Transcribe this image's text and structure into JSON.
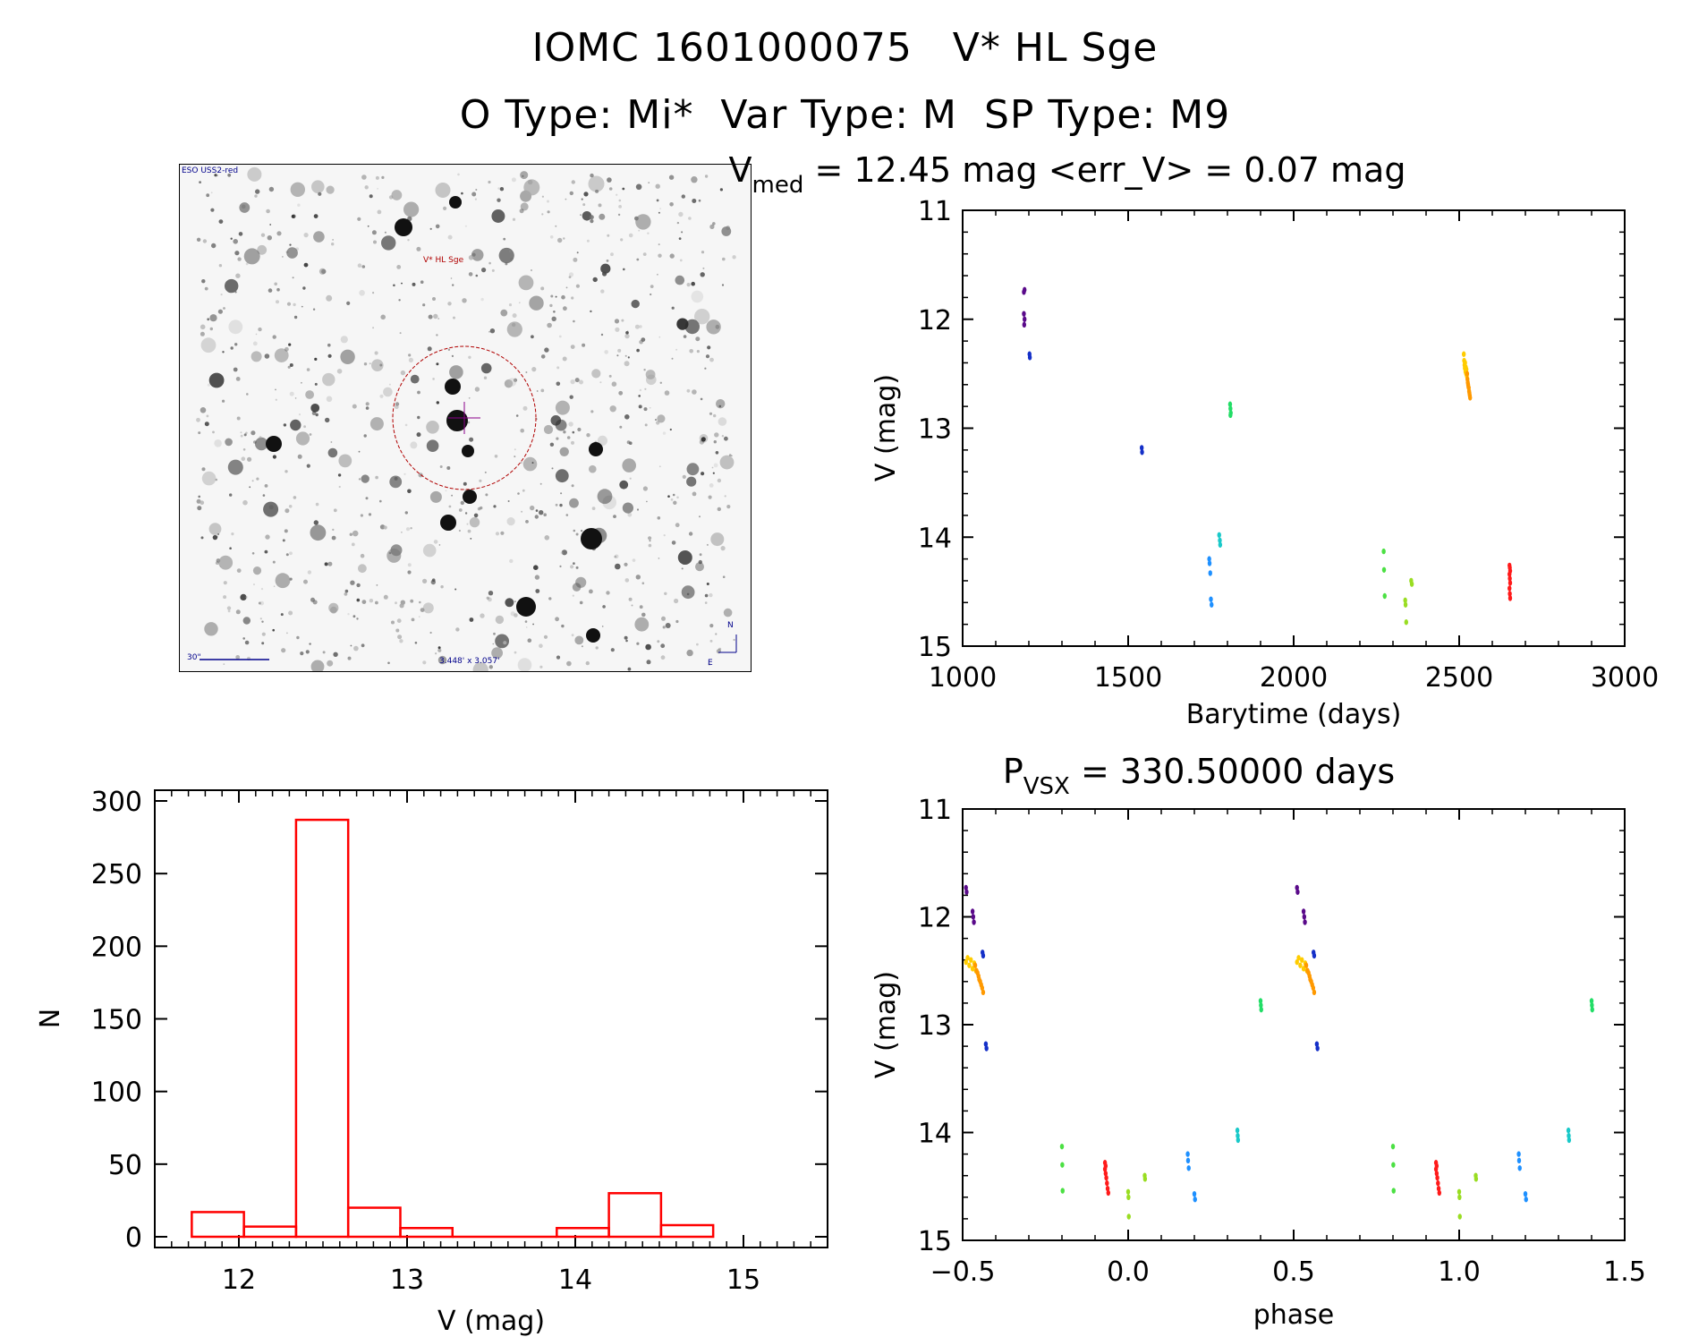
{
  "header": {
    "line1": "IOMC 1601000075   V* HL Sge",
    "line2": "O Type: Mi*  Var Type: M  SP Type: M9"
  },
  "image_stamp": {
    "survey_label": "ESO USS2-red",
    "target_label": "V* HL Sge",
    "scale_label": "30\"",
    "fov_label": "3.448' x 3.057'",
    "compass_n": "N",
    "compass_e": "E"
  },
  "chart_data": [
    {
      "id": "lightcurve",
      "type": "scatter",
      "title_prefix": "V",
      "title_sub": "med",
      "title_rest": " = 12.45 mag <err_V> = 0.07 mag",
      "xlabel": "Barytime (days)",
      "ylabel": "V (mag)",
      "xlim": [
        1000,
        3000
      ],
      "ylim": [
        15,
        11
      ],
      "xticks": [
        "1000",
        "1500",
        "2000",
        "2500",
        "3000"
      ],
      "yticks": [
        "11",
        "12",
        "13",
        "14",
        "15"
      ],
      "series": [
        {
          "name": "g1",
          "color": "#5a0a8a",
          "points": [
            [
              1185,
              11.75
            ],
            [
              1187,
              11.73
            ],
            [
              1185,
              11.95
            ],
            [
              1187,
              12.0
            ],
            [
              1186,
              12.05
            ]
          ]
        },
        {
          "name": "g2",
          "color": "#1530c8",
          "points": [
            [
              1202,
              12.32
            ],
            [
              1203,
              12.35
            ],
            [
              1541,
              13.18
            ],
            [
              1542,
              13.22
            ]
          ]
        },
        {
          "name": "g3",
          "color": "#1e90ff",
          "points": [
            [
              1745,
              14.2
            ],
            [
              1746,
              14.24
            ],
            [
              1748,
              14.33
            ],
            [
              1750,
              14.57
            ],
            [
              1752,
              14.62
            ]
          ]
        },
        {
          "name": "g4",
          "color": "#19c9c9",
          "points": [
            [
              1775,
              13.98
            ],
            [
              1777,
              14.03
            ],
            [
              1778,
              14.07
            ]
          ]
        },
        {
          "name": "g5",
          "color": "#22dd66",
          "points": [
            [
              1808,
              12.78
            ],
            [
              1809,
              12.82
            ],
            [
              1810,
              12.86
            ],
            [
              1809,
              12.88
            ]
          ]
        },
        {
          "name": "g6",
          "color": "#4be043",
          "points": [
            [
              2272,
              14.13
            ],
            [
              2273,
              14.3
            ],
            [
              2275,
              14.54
            ]
          ]
        },
        {
          "name": "g7",
          "color": "#99dd22",
          "points": [
            [
              2337,
              14.58
            ],
            [
              2338,
              14.62
            ],
            [
              2340,
              14.78
            ],
            [
              2355,
              14.4
            ],
            [
              2357,
              14.43
            ]
          ]
        },
        {
          "name": "g8",
          "color": "#ffcc00",
          "points": [
            [
              2514,
              12.32
            ],
            [
              2515,
              12.38
            ],
            [
              2516,
              12.42
            ],
            [
              2517,
              12.45
            ],
            [
              2518,
              12.4
            ],
            [
              2519,
              12.48
            ],
            [
              2520,
              12.44
            ],
            [
              2521,
              12.5
            ],
            [
              2522,
              12.46
            ],
            [
              2523,
              12.52
            ]
          ]
        },
        {
          "name": "g9",
          "color": "#ff9900",
          "points": [
            [
              2524,
              12.5
            ],
            [
              2525,
              12.55
            ],
            [
              2526,
              12.58
            ],
            [
              2527,
              12.6
            ],
            [
              2528,
              12.62
            ],
            [
              2529,
              12.63
            ],
            [
              2530,
              12.66
            ],
            [
              2531,
              12.68
            ],
            [
              2532,
              12.7
            ],
            [
              2533,
              12.72
            ]
          ]
        },
        {
          "name": "g10",
          "color": "#ff1a1a",
          "points": [
            [
              2652,
              14.26
            ],
            [
              2653,
              14.28
            ],
            [
              2654,
              14.31
            ],
            [
              2652,
              14.34
            ],
            [
              2653,
              14.38
            ],
            [
              2654,
              14.42
            ],
            [
              2652,
              14.47
            ],
            [
              2653,
              14.52
            ],
            [
              2654,
              14.56
            ]
          ]
        }
      ]
    },
    {
      "id": "histogram",
      "type": "bar",
      "xlabel": "V (mag)",
      "ylabel": "N",
      "xlim": [
        11.5,
        15.5
      ],
      "ylim": [
        0,
        300
      ],
      "xticks": [
        "12",
        "13",
        "14",
        "15"
      ],
      "yticks": [
        "0",
        "50",
        "100",
        "150",
        "200",
        "250",
        "300"
      ],
      "bins": [
        {
          "from": 11.72,
          "to": 12.03,
          "count": 17
        },
        {
          "from": 12.03,
          "to": 12.34,
          "count": 7
        },
        {
          "from": 12.34,
          "to": 12.65,
          "count": 287
        },
        {
          "from": 12.65,
          "to": 12.96,
          "count": 20
        },
        {
          "from": 12.96,
          "to": 13.27,
          "count": 6
        },
        {
          "from": 13.27,
          "to": 13.58,
          "count": 0
        },
        {
          "from": 13.58,
          "to": 13.89,
          "count": 0
        },
        {
          "from": 13.89,
          "to": 14.2,
          "count": 6
        },
        {
          "from": 14.2,
          "to": 14.51,
          "count": 30
        },
        {
          "from": 14.51,
          "to": 14.82,
          "count": 8
        }
      ],
      "color": "#ff0000"
    },
    {
      "id": "phaseplot",
      "type": "scatter",
      "title_prefix": "P",
      "title_sub": "VSX",
      "title_rest": " = 330.50000 days",
      "xlabel": "phase",
      "ylabel": "V (mag)",
      "xlim": [
        -0.5,
        1.5
      ],
      "ylim": [
        15,
        11
      ],
      "xticks": [
        "−0.5",
        "0.0",
        "0.5",
        "1.0",
        "1.5"
      ],
      "yticks": [
        "11",
        "12",
        "13",
        "14",
        "15"
      ],
      "series": [
        {
          "name": "p1",
          "color": "#5a0a8a",
          "points": [
            [
              -0.49,
              11.73
            ],
            [
              -0.488,
              11.77
            ],
            [
              -0.47,
              11.95
            ],
            [
              -0.468,
              12.0
            ],
            [
              -0.466,
              12.05
            ],
            [
              0.51,
              11.73
            ],
            [
              0.512,
              11.77
            ],
            [
              0.53,
              11.95
            ],
            [
              0.532,
              12.0
            ],
            [
              0.534,
              12.05
            ]
          ]
        },
        {
          "name": "p2",
          "color": "#1530c8",
          "points": [
            [
              -0.44,
              12.33
            ],
            [
              -0.438,
              12.36
            ],
            [
              -0.43,
              13.18
            ],
            [
              -0.428,
              13.22
            ],
            [
              0.56,
              12.33
            ],
            [
              0.562,
              12.36
            ],
            [
              0.57,
              13.18
            ],
            [
              0.572,
              13.22
            ]
          ]
        },
        {
          "name": "p3",
          "color": "#1e90ff",
          "points": [
            [
              0.18,
              14.2
            ],
            [
              0.181,
              14.26
            ],
            [
              0.183,
              14.33
            ],
            [
              0.2,
              14.57
            ],
            [
              0.202,
              14.62
            ],
            [
              1.18,
              14.2
            ],
            [
              1.181,
              14.26
            ],
            [
              1.183,
              14.33
            ],
            [
              1.2,
              14.57
            ],
            [
              1.202,
              14.62
            ]
          ]
        },
        {
          "name": "p4",
          "color": "#19c9c9",
          "points": [
            [
              0.33,
              13.98
            ],
            [
              0.331,
              14.03
            ],
            [
              0.332,
              14.07
            ],
            [
              1.33,
              13.98
            ],
            [
              1.331,
              14.03
            ],
            [
              1.332,
              14.07
            ]
          ]
        },
        {
          "name": "p5",
          "color": "#22dd66",
          "points": [
            [
              0.4,
              12.78
            ],
            [
              0.401,
              12.82
            ],
            [
              0.402,
              12.86
            ],
            [
              1.4,
              12.78
            ],
            [
              1.401,
              12.82
            ],
            [
              1.402,
              12.86
            ]
          ]
        },
        {
          "name": "p6",
          "color": "#4be043",
          "points": [
            [
              -0.2,
              14.13
            ],
            [
              -0.199,
              14.3
            ],
            [
              -0.198,
              14.54
            ],
            [
              0.8,
              14.13
            ],
            [
              0.801,
              14.3
            ],
            [
              0.802,
              14.54
            ]
          ]
        },
        {
          "name": "p7",
          "color": "#99dd22",
          "points": [
            [
              0.0,
              14.55
            ],
            [
              0.001,
              14.6
            ],
            [
              0.002,
              14.78
            ],
            [
              0.05,
              14.4
            ],
            [
              0.051,
              14.43
            ],
            [
              1.0,
              14.55
            ],
            [
              1.001,
              14.6
            ],
            [
              1.002,
              14.78
            ],
            [
              1.05,
              14.4
            ],
            [
              1.051,
              14.43
            ]
          ]
        },
        {
          "name": "p8",
          "color": "#ffcc00",
          "points": [
            [
              -0.49,
              12.42
            ],
            [
              -0.485,
              12.38
            ],
            [
              -0.48,
              12.45
            ],
            [
              -0.475,
              12.4
            ],
            [
              -0.47,
              12.48
            ],
            [
              -0.465,
              12.43
            ],
            [
              -0.46,
              12.5
            ],
            [
              0.51,
              12.42
            ],
            [
              0.515,
              12.38
            ],
            [
              0.52,
              12.45
            ],
            [
              0.525,
              12.4
            ],
            [
              0.53,
              12.48
            ],
            [
              0.535,
              12.43
            ],
            [
              0.54,
              12.5
            ]
          ]
        },
        {
          "name": "p9",
          "color": "#ff9900",
          "points": [
            [
              -0.462,
              12.45
            ],
            [
              -0.458,
              12.5
            ],
            [
              -0.455,
              12.52
            ],
            [
              -0.452,
              12.55
            ],
            [
              -0.45,
              12.58
            ],
            [
              -0.447,
              12.6
            ],
            [
              -0.444,
              12.63
            ],
            [
              -0.441,
              12.66
            ],
            [
              -0.438,
              12.7
            ],
            [
              0.538,
              12.45
            ],
            [
              0.542,
              12.5
            ],
            [
              0.545,
              12.52
            ],
            [
              0.548,
              12.55
            ],
            [
              0.55,
              12.58
            ],
            [
              0.553,
              12.6
            ],
            [
              0.556,
              12.63
            ],
            [
              0.559,
              12.66
            ],
            [
              0.562,
              12.7
            ]
          ]
        },
        {
          "name": "p10",
          "color": "#ff1a1a",
          "points": [
            [
              -0.07,
              14.28
            ],
            [
              -0.068,
              14.31
            ],
            [
              -0.07,
              14.34
            ],
            [
              -0.068,
              14.38
            ],
            [
              -0.066,
              14.42
            ],
            [
              -0.064,
              14.47
            ],
            [
              -0.062,
              14.52
            ],
            [
              -0.06,
              14.56
            ],
            [
              0.93,
              14.28
            ],
            [
              0.932,
              14.31
            ],
            [
              0.93,
              14.34
            ],
            [
              0.932,
              14.38
            ],
            [
              0.934,
              14.42
            ],
            [
              0.936,
              14.47
            ],
            [
              0.938,
              14.52
            ],
            [
              0.94,
              14.56
            ]
          ]
        }
      ]
    }
  ]
}
